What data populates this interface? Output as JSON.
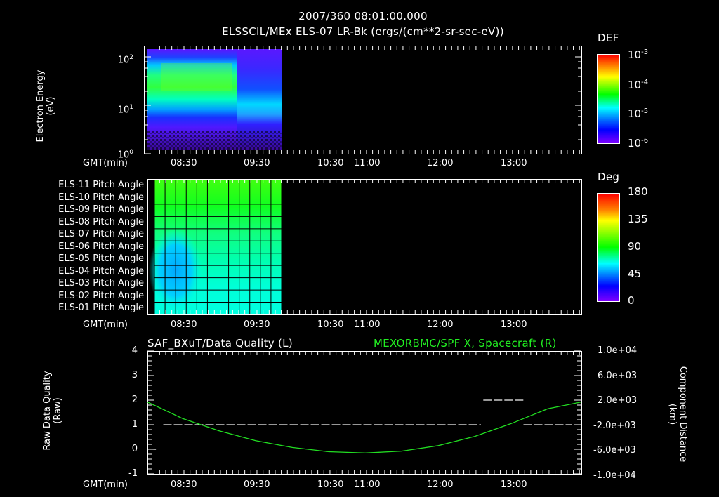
{
  "header": {
    "timestamp": "2007/360 08:01:00.000",
    "title": "ELSSCIL/MEx ELS-07 LR-Bk  (ergs/(cm**2-sr-sec-eV))"
  },
  "colors": {
    "background": "#000000",
    "axes": "#ffffff",
    "spacecraft_trace": "#22dd22",
    "colormap": [
      "#7f00ff",
      "#0000ff",
      "#00ffff",
      "#00ff00",
      "#ffff00",
      "#ff8000",
      "#ff0000"
    ]
  },
  "time_axis": {
    "label": "GMT(min)",
    "ticks": [
      "08:30",
      "09:30",
      "10:30",
      "11:00",
      "12:00",
      "13:00"
    ]
  },
  "panel1": {
    "ylabel_line1": "Electron Energy",
    "ylabel_line2": "(eV)",
    "yticks": [
      {
        "base": "10",
        "exp": "2"
      },
      {
        "base": "10",
        "exp": "1"
      },
      {
        "base": "10",
        "exp": "0"
      }
    ],
    "colorbar": {
      "title": "DEF",
      "ticks": [
        {
          "base": "10",
          "exp": "-3"
        },
        {
          "base": "10",
          "exp": "-4"
        },
        {
          "base": "10",
          "exp": "-5"
        },
        {
          "base": "10",
          "exp": "-6"
        }
      ]
    }
  },
  "panel2": {
    "rows": [
      "ELS-11 Pitch Angle",
      "ELS-10 Pitch Angle",
      "ELS-09 Pitch Angle",
      "ELS-08 Pitch Angle",
      "ELS-07 Pitch Angle",
      "ELS-06 Pitch Angle",
      "ELS-05 Pitch Angle",
      "ELS-04 Pitch Angle",
      "ELS-03 Pitch Angle",
      "ELS-02 Pitch Angle",
      "ELS-01 Pitch Angle"
    ],
    "colorbar": {
      "title": "Deg",
      "ticks": [
        "180",
        "135",
        "90",
        "45",
        "0"
      ]
    }
  },
  "panel3": {
    "title_left": "SAF_BXuT/Data Quality (L)",
    "title_right": "MEXORBMC/SPF X, Spacecraft (R)",
    "ylabel_left_line1": "Raw Data Quality",
    "ylabel_left_line2": "(Raw)",
    "ylabel_right_line1": "Component Distance",
    "ylabel_right_line2": "(km)",
    "yticks_left": [
      "4",
      "3",
      "2",
      "1",
      "0",
      "-1"
    ],
    "yticks_right": [
      "1.0e+04",
      "6.0e+03",
      "2.0e+03",
      "-2.0e+03",
      "-6.0e+03",
      "-1.0e+04"
    ]
  },
  "chart_data": [
    {
      "type": "heatmap",
      "title": "ELSSCIL/MEx ELS-07 LR-Bk  (ergs/(cm**2-sr-sec-eV))",
      "subtitle": "2007/360 08:01:00.000",
      "xlabel": "GMT(min)",
      "ylabel": "Electron Energy (eV)",
      "x_ticks": [
        "08:30",
        "09:30",
        "10:30",
        "11:00",
        "12:00",
        "13:00"
      ],
      "x_range": [
        "08:01",
        "14:00"
      ],
      "y_scale": "log",
      "ylim": [
        1,
        150
      ],
      "data_time_range": [
        "08:03",
        "09:51"
      ],
      "colorbar": {
        "label": "DEF",
        "scale": "log",
        "range": [
          1e-06,
          0.001
        ]
      },
      "description": "Peak flux (~1e-4) at 30-60 eV from 08:10 to 09:10; lower flux and cooling after 09:10; no data after ~09:51"
    },
    {
      "type": "heatmap",
      "title": "ELS anode pitch angles",
      "xlabel": "GMT(min)",
      "rows": [
        "ELS-11",
        "ELS-10",
        "ELS-09",
        "ELS-08",
        "ELS-07",
        "ELS-06",
        "ELS-05",
        "ELS-04",
        "ELS-03",
        "ELS-02",
        "ELS-01"
      ],
      "data_time_range": [
        "08:06",
        "09:51"
      ],
      "colorbar": {
        "label": "Deg",
        "range": [
          0,
          180
        ],
        "ticks": [
          0,
          45,
          90,
          135,
          180
        ]
      },
      "approx_values_deg": {
        "ELS-11": 100,
        "ELS-10": 95,
        "ELS-09": 92,
        "ELS-08": 88,
        "ELS-07": 82,
        "ELS-06": 75,
        "ELS-05": 68,
        "ELS-04": 64,
        "ELS-03": 62,
        "ELS-02": 60,
        "ELS-01": 65
      }
    },
    {
      "type": "line",
      "title": "SAF_BXuT/Data Quality (L) ; MEXORBMC/SPF X, Spacecraft (R)",
      "xlabel": "GMT(min)",
      "ylabel": "Raw Data Quality (Raw)",
      "ylabel_right": "Component Distance (km)",
      "ylim": [
        -1,
        4
      ],
      "ylim_right": [
        -10000,
        10000
      ],
      "x_ticks": [
        "08:30",
        "09:30",
        "10:30",
        "11:00",
        "12:00",
        "13:00"
      ],
      "series": [
        {
          "name": "Data Quality (L)",
          "style": "dashed-segments",
          "x": [
            "08:07",
            "08:13",
            "12:35",
            "12:35",
            "13:08",
            "13:08",
            "14:00"
          ],
          "values": [
            0,
            1,
            1,
            2,
            2,
            1,
            1
          ]
        },
        {
          "name": "SPF X Spacecraft (R)",
          "color": "#22dd22",
          "x": [
            "08:01",
            "08:30",
            "09:00",
            "09:30",
            "10:00",
            "10:30",
            "11:00",
            "11:30",
            "12:00",
            "12:30",
            "13:00",
            "13:30",
            "14:00"
          ],
          "values": [
            1700,
            -1000,
            -3000,
            -4600,
            -5700,
            -6400,
            -6600,
            -6300,
            -5400,
            -3900,
            -1800,
            600,
            1700
          ]
        }
      ]
    }
  ]
}
